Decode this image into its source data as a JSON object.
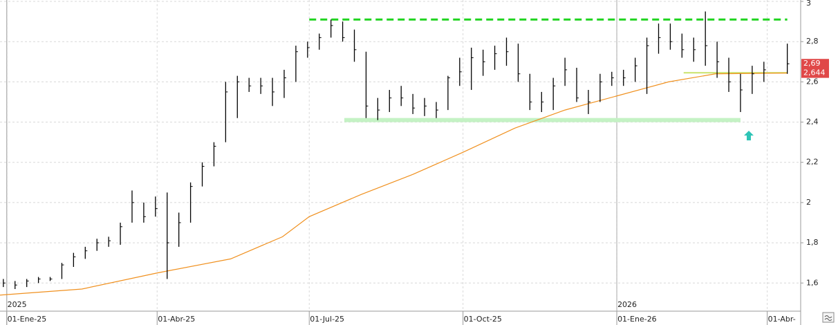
{
  "chart_data": {
    "type": "ohlc",
    "color": "#000000",
    "x": [
      "2024-12-30",
      "2025-01-06",
      "2025-01-13",
      "2025-01-20",
      "2025-01-27",
      "2025-02-03",
      "2025-02-10",
      "2025-02-17",
      "2025-02-24",
      "2025-03-03",
      "2025-03-10",
      "2025-03-17",
      "2025-03-24",
      "2025-03-31",
      "2025-04-07",
      "2025-04-14",
      "2025-04-21",
      "2025-04-28",
      "2025-05-05",
      "2025-05-12",
      "2025-05-19",
      "2025-05-26",
      "2025-06-02",
      "2025-06-09",
      "2025-06-16",
      "2025-06-23",
      "2025-06-30",
      "2025-07-07",
      "2025-07-14",
      "2025-07-21",
      "2025-07-28",
      "2025-08-04",
      "2025-08-11",
      "2025-08-18",
      "2025-08-25",
      "2025-09-01",
      "2025-09-08",
      "2025-09-15",
      "2025-09-22",
      "2025-09-29",
      "2025-10-06",
      "2025-10-13",
      "2025-10-20",
      "2025-10-27",
      "2025-11-03",
      "2025-11-10",
      "2025-11-17",
      "2025-11-24",
      "2025-12-01",
      "2025-12-08",
      "2025-12-15",
      "2025-12-22",
      "2025-12-29",
      "2026-01-05",
      "2026-01-12",
      "2026-01-19",
      "2026-01-26",
      "2026-02-02",
      "2026-02-09",
      "2026-02-16",
      "2026-02-23",
      "2026-03-02",
      "2026-03-09",
      "2026-03-16",
      "2026-03-23",
      "2026-03-30",
      "2026-04-13"
    ],
    "high": [
      1.62,
      1.61,
      1.62,
      1.63,
      1.63,
      1.7,
      1.75,
      1.78,
      1.82,
      1.83,
      1.9,
      2.06,
      2.0,
      2.03,
      2.05,
      1.95,
      2.1,
      2.2,
      2.3,
      2.6,
      2.63,
      2.62,
      2.62,
      2.62,
      2.66,
      2.78,
      2.8,
      2.84,
      2.91,
      2.9,
      2.86,
      2.75,
      2.52,
      2.56,
      2.58,
      2.54,
      2.52,
      2.5,
      2.63,
      2.72,
      2.77,
      2.76,
      2.78,
      2.82,
      2.79,
      2.64,
      2.55,
      2.62,
      2.72,
      2.67,
      2.56,
      2.64,
      2.65,
      2.66,
      2.72,
      2.82,
      2.89,
      2.89,
      2.84,
      2.82,
      2.95,
      2.8,
      2.72,
      2.64,
      2.68,
      2.7,
      2.79
    ],
    "low": [
      1.58,
      1.57,
      1.58,
      1.6,
      1.61,
      1.62,
      1.68,
      1.72,
      1.76,
      1.78,
      1.79,
      1.9,
      1.9,
      1.93,
      1.62,
      1.78,
      1.9,
      2.08,
      2.18,
      2.3,
      2.42,
      2.55,
      2.54,
      2.48,
      2.52,
      2.6,
      2.72,
      2.76,
      2.82,
      2.8,
      2.7,
      2.42,
      2.41,
      2.45,
      2.48,
      2.44,
      2.43,
      2.42,
      2.46,
      2.58,
      2.56,
      2.63,
      2.66,
      2.68,
      2.6,
      2.46,
      2.45,
      2.46,
      2.58,
      2.5,
      2.44,
      2.5,
      2.58,
      2.58,
      2.6,
      2.54,
      2.74,
      2.76,
      2.72,
      2.7,
      2.68,
      2.62,
      2.55,
      2.45,
      2.54,
      2.6,
      2.64
    ],
    "close": [
      1.6,
      1.59,
      1.61,
      1.62,
      1.62,
      1.69,
      1.73,
      1.76,
      1.8,
      1.81,
      1.88,
      2.0,
      1.93,
      1.97,
      1.8,
      1.9,
      2.08,
      2.18,
      2.28,
      2.55,
      2.6,
      2.58,
      2.58,
      2.55,
      2.62,
      2.75,
      2.77,
      2.82,
      2.88,
      2.82,
      2.76,
      2.48,
      2.46,
      2.52,
      2.52,
      2.47,
      2.48,
      2.46,
      2.62,
      2.65,
      2.72,
      2.7,
      2.74,
      2.75,
      2.64,
      2.5,
      2.5,
      2.58,
      2.66,
      2.52,
      2.5,
      2.6,
      2.62,
      2.62,
      2.68,
      2.78,
      2.82,
      2.8,
      2.76,
      2.76,
      2.78,
      2.7,
      2.6,
      2.56,
      2.64,
      2.66,
      2.69
    ],
    "overlay": {
      "color": "#f0901e",
      "x": [
        "2024-12-28",
        "2025-02-15",
        "2025-04-01",
        "2025-05-15",
        "2025-06-15",
        "2025-07-01",
        "2025-08-01",
        "2025-09-01",
        "2025-10-01",
        "2025-11-01",
        "2025-12-01",
        "2026-01-01",
        "2026-02-01",
        "2026-03-01",
        "2026-04-13"
      ],
      "values": [
        1.54,
        1.57,
        1.65,
        1.72,
        1.83,
        1.93,
        2.04,
        2.14,
        2.25,
        2.37,
        2.46,
        2.53,
        2.6,
        2.64,
        2.644
      ]
    },
    "hlines": [
      {
        "value": 2.91,
        "from": "2025-07-01",
        "to": "2026-04-13",
        "color": "#1fd41f",
        "style": "dashed"
      },
      {
        "value": 2.41,
        "from": "2025-07-22",
        "to": "2026-03-16",
        "color": "#c4f2c4",
        "style": "thick"
      },
      {
        "value": 2.645,
        "from": "2026-02-10",
        "to": "2026-04-13",
        "color": "#c9e36a",
        "style": "thin"
      }
    ],
    "price_tags": [
      {
        "value": 2.69,
        "label": "2,69",
        "color": "#e04848"
      },
      {
        "value": 2.644,
        "label": "2,644",
        "color": "#e04848"
      }
    ],
    "year_labels": [
      {
        "x": "2025-01-01",
        "label": "2025"
      },
      {
        "x": "2026-01-01",
        "label": "2026"
      }
    ],
    "xlim": [
      "2024-12-28",
      "2026-04-21"
    ],
    "xticks": [
      {
        "value": "2025-01-01",
        "label": "01-Ene-25"
      },
      {
        "value": "2025-04-01",
        "label": "01-Abr-25"
      },
      {
        "value": "2025-07-01",
        "label": "01-Jul-25"
      },
      {
        "value": "2025-10-01",
        "label": "01-Oct-25"
      },
      {
        "value": "2026-01-01",
        "label": "01-Ene-26"
      },
      {
        "value": "2026-04-01",
        "label": "01-Abr-"
      }
    ],
    "ylim": [
      1.46,
      3.007
    ],
    "yticks": [
      {
        "value": 1.6,
        "label": "1,6"
      },
      {
        "value": 1.8,
        "label": "1,8"
      },
      2,
      {
        "value": 2.2,
        "label": "2,2"
      },
      {
        "value": 2.4,
        "label": "2,4"
      },
      {
        "value": 2.6,
        "label": "2,6"
      },
      {
        "value": 2.8,
        "label": "2,8"
      },
      3
    ],
    "grid": true
  }
}
